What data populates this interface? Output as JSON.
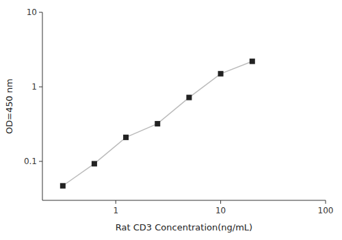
{
  "chart_data": {
    "type": "line",
    "x": [
      0.313,
      0.625,
      1.25,
      2.5,
      5.0,
      10.0,
      20.0
    ],
    "values": [
      0.047,
      0.093,
      0.21,
      0.32,
      0.72,
      1.5,
      2.2
    ],
    "xlabel": "Rat CD3 Concentration(ng/mL)",
    "ylabel": "OD=450 nm",
    "log": true,
    "xlim": [
      0.2,
      100
    ],
    "ylim": [
      0.03,
      10
    ],
    "xticks": [
      1,
      10,
      100
    ],
    "yticks": [
      0.1,
      1,
      10
    ],
    "color": "#bbbbbb",
    "marker": "square",
    "grid": false
  }
}
